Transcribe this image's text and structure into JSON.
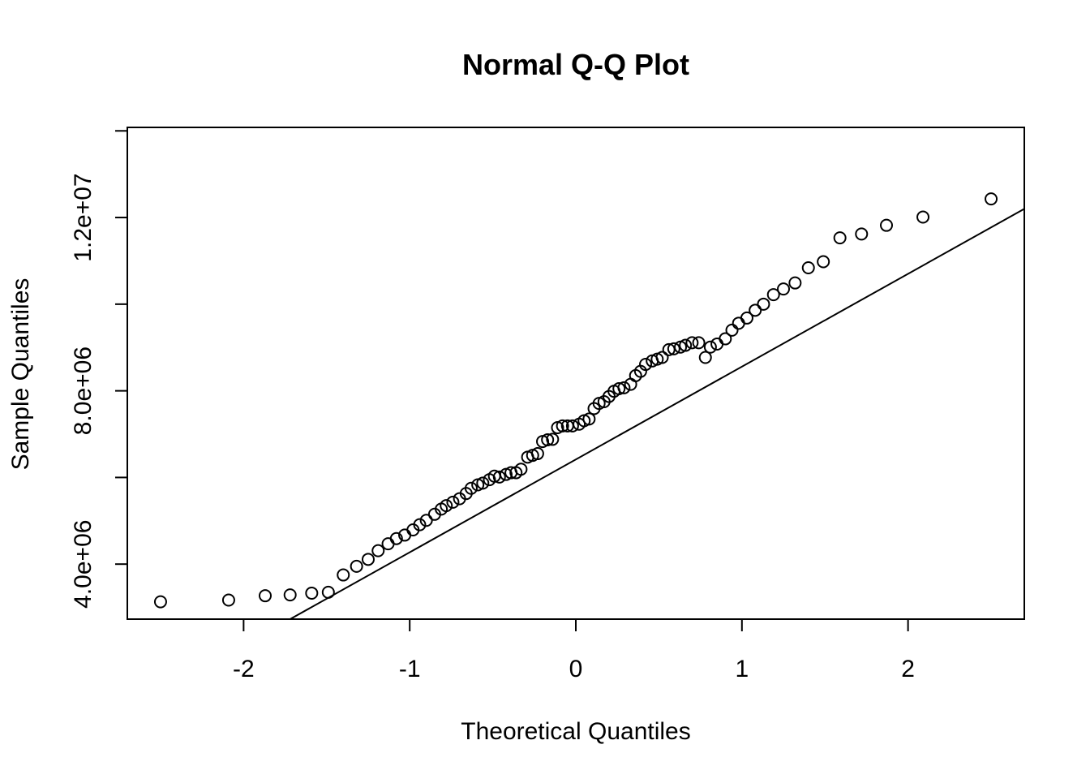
{
  "chart_data": {
    "type": "scatter",
    "title": "Normal Q-Q Plot",
    "xlabel": "Theoretical Quantiles",
    "ylabel": "Sample Quantiles",
    "xlim": [
      -2.7,
      2.7
    ],
    "ylim": [
      2730000,
      14080000
    ],
    "x_ticks": [
      -2,
      -1,
      0,
      1,
      2
    ],
    "x_tick_labels": [
      "-2",
      "-1",
      "0",
      "1",
      "2"
    ],
    "y_ticks": [
      4000000,
      6000000,
      8000000,
      10000000,
      12000000,
      14000000
    ],
    "y_tick_labels": [
      "4.0e+06",
      "",
      "8.0e+06",
      "",
      "1.2e+07",
      ""
    ],
    "grid": false,
    "reference_line": {
      "x": [
        -1.72,
        2.7
      ],
      "y": [
        2730000,
        12200000
      ]
    },
    "x": [
      -2.5,
      -2.09,
      -1.87,
      -1.72,
      -1.59,
      -1.49,
      -1.4,
      -1.32,
      -1.25,
      -1.19,
      -1.13,
      -1.08,
      -1.03,
      -0.98,
      -0.94,
      -0.9,
      -0.85,
      -0.81,
      -0.78,
      -0.74,
      -0.7,
      -0.66,
      -0.63,
      -0.59,
      -0.56,
      -0.52,
      -0.49,
      -0.46,
      -0.42,
      -0.39,
      -0.36,
      -0.33,
      -0.29,
      -0.26,
      -0.23,
      -0.2,
      -0.17,
      -0.14,
      -0.11,
      -0.08,
      -0.05,
      -0.02,
      0.02,
      0.05,
      0.08,
      0.11,
      0.14,
      0.17,
      0.2,
      0.23,
      0.26,
      0.29,
      0.33,
      0.36,
      0.39,
      0.42,
      0.46,
      0.49,
      0.52,
      0.56,
      0.59,
      0.63,
      0.66,
      0.7,
      0.74,
      0.78,
      0.81,
      0.85,
      0.9,
      0.94,
      0.98,
      1.03,
      1.08,
      1.13,
      1.19,
      1.25,
      1.32,
      1.4,
      1.49,
      1.59,
      1.72,
      1.87,
      2.09,
      2.5
    ],
    "y": [
      3130000,
      3170000,
      3270000,
      3290000,
      3330000,
      3350000,
      3750000,
      3950000,
      4110000,
      4310000,
      4470000,
      4590000,
      4670000,
      4790000,
      4910000,
      5010000,
      5150000,
      5270000,
      5350000,
      5430000,
      5510000,
      5630000,
      5750000,
      5830000,
      5870000,
      5950000,
      6030000,
      6010000,
      6070000,
      6110000,
      6110000,
      6190000,
      6470000,
      6510000,
      6550000,
      6830000,
      6870000,
      6880000,
      7150000,
      7190000,
      7190000,
      7190000,
      7230000,
      7310000,
      7350000,
      7590000,
      7710000,
      7750000,
      7870000,
      7990000,
      8050000,
      8070000,
      8150000,
      8350000,
      8450000,
      8610000,
      8690000,
      8730000,
      8770000,
      8950000,
      8970000,
      9010000,
      9050000,
      9110000,
      9110000,
      8770000,
      9010000,
      9080000,
      9200000,
      9400000,
      9560000,
      9680000,
      9860000,
      10000000,
      10220000,
      10350000,
      10490000,
      10840000,
      10980000,
      11530000,
      11620000,
      11820000,
      12010000,
      12430000
    ]
  }
}
